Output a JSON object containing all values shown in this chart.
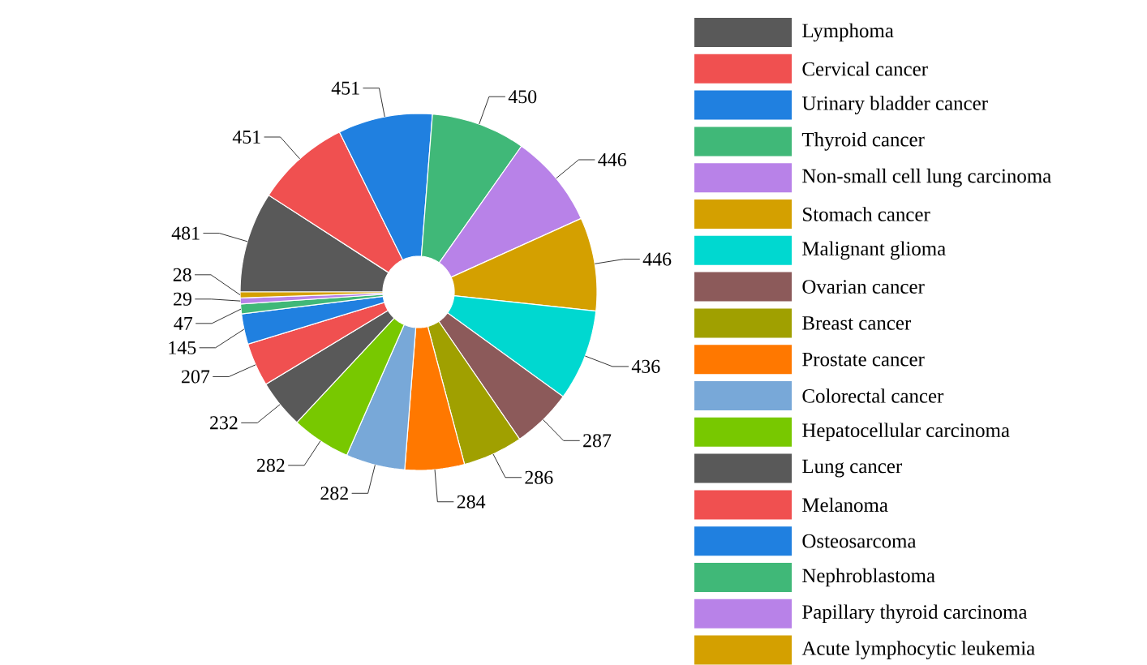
{
  "chart_data": {
    "type": "donut",
    "categories": [
      "Lymphoma",
      "Cervical cancer",
      "Urinary bladder cancer",
      "Thyroid cancer",
      "Non-small cell lung carcinoma",
      "Stomach cancer",
      "Malignant glioma",
      "Ovarian cancer",
      "Breast cancer",
      "Prostate cancer",
      "Colorectal cancer",
      "Hepatocellular carcinoma",
      "Lung cancer",
      "Melanoma",
      "Osteosarcoma",
      "Nephroblastoma",
      "Papillary thyroid carcinoma",
      "Acute lymphocytic leukemia"
    ],
    "values": [
      481,
      451,
      451,
      450,
      446,
      446,
      436,
      287,
      286,
      284,
      282,
      282,
      232,
      207,
      145,
      47,
      29,
      28
    ],
    "colors": [
      "#595959",
      "#f05050",
      "#2080e0",
      "#40b878",
      "#b882e8",
      "#d4a000",
      "#00d8d0",
      "#8c5a5a",
      "#a0a000",
      "#ff7800",
      "#78a8d8",
      "#78c800",
      "#595959",
      "#f05050",
      "#2080e0",
      "#40b878",
      "#b882e8",
      "#d4a000"
    ],
    "data_labels": true,
    "legend": "right"
  }
}
